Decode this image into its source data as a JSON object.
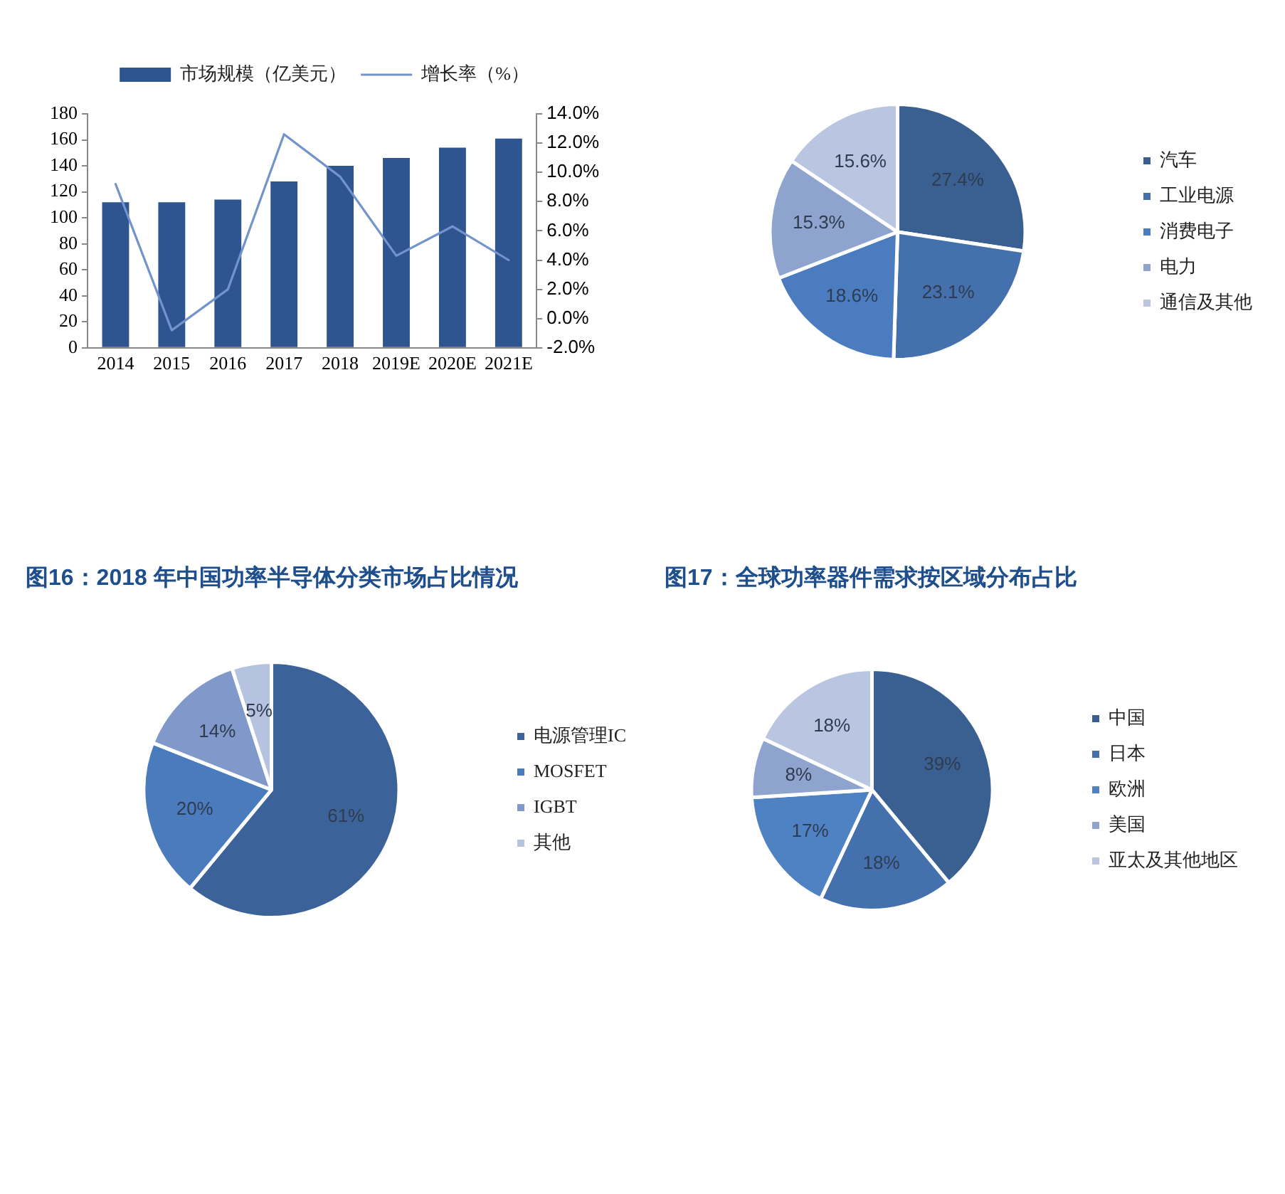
{
  "chart_data": [
    {
      "type": "bar",
      "categories": [
        "2014",
        "2015",
        "2016",
        "2017",
        "2018",
        "2019E",
        "2020E",
        "2021E"
      ],
      "series": [
        {
          "name": "市场规模（亿美元）",
          "type": "bar",
          "color": "#2e5590",
          "values": [
            112,
            112,
            114,
            128,
            140,
            146,
            154,
            161
          ]
        },
        {
          "name": "增长率（%）",
          "type": "line",
          "axis": "y2",
          "color": "#7393cb",
          "values": [
            9.2,
            -0.8,
            2.0,
            12.6,
            9.7,
            4.3,
            6.3,
            4.0
          ]
        }
      ],
      "ylim": [
        0,
        180
      ],
      "yticks": [
        0,
        20,
        40,
        60,
        80,
        100,
        120,
        140,
        160,
        180
      ],
      "y2lim": [
        -2,
        14
      ],
      "y2ticks": [
        {
          "value": -2,
          "label": "-2.0%"
        },
        {
          "value": 0,
          "label": "0.0%"
        },
        {
          "value": 2,
          "label": "2.0%"
        },
        {
          "value": 4,
          "label": "4.0%"
        },
        {
          "value": 6,
          "label": "6.0%"
        },
        {
          "value": 8,
          "label": "8.0%"
        },
        {
          "value": 10,
          "label": "10.0%"
        },
        {
          "value": 12,
          "label": "12.0%"
        },
        {
          "value": 14,
          "label": "14.0%"
        }
      ],
      "grid": false,
      "legend": "top",
      "marker": "none"
    },
    {
      "type": "pie",
      "categories": [
        "汽车",
        "工业电源",
        "消费电子",
        "电力",
        "通信及其他"
      ],
      "values": [
        27.4,
        23.1,
        18.6,
        15.3,
        15.6
      ],
      "colors": [
        "#3a5f91",
        "#4471ae",
        "#4b7cc0",
        "#8ea4cf",
        "#b9c5e1"
      ],
      "value_labels": [
        "27.4%",
        "23.1%",
        "18.6%",
        "15.3%",
        "15.6%"
      ],
      "legend": "right"
    },
    {
      "type": "pie",
      "title": "图16：2018 年中国功率半导体分类市场占比情况",
      "categories": [
        "电源管理IC",
        "MOSFET",
        "IGBT",
        "其他"
      ],
      "values": [
        61,
        20,
        14,
        5
      ],
      "colors": [
        "#3c6399",
        "#4a7bbd",
        "#8199ca",
        "#b5c3e1"
      ],
      "value_labels": [
        "61%",
        "20%",
        "14%",
        "5%"
      ],
      "legend": "right"
    },
    {
      "type": "pie",
      "title": "图17：全球功率器件需求按区域分布占比",
      "categories": [
        "中国",
        "日本",
        "欧洲",
        "美国",
        "亚太及其他地区"
      ],
      "values": [
        39,
        18,
        17,
        8,
        18
      ],
      "colors": [
        "#3a5f91",
        "#4471ae",
        "#4f82c3",
        "#8ea4cf",
        "#b9c5e1"
      ],
      "value_labels": [
        "39%",
        "18%",
        "17%",
        "8%",
        "18%"
      ],
      "legend": "right"
    }
  ]
}
